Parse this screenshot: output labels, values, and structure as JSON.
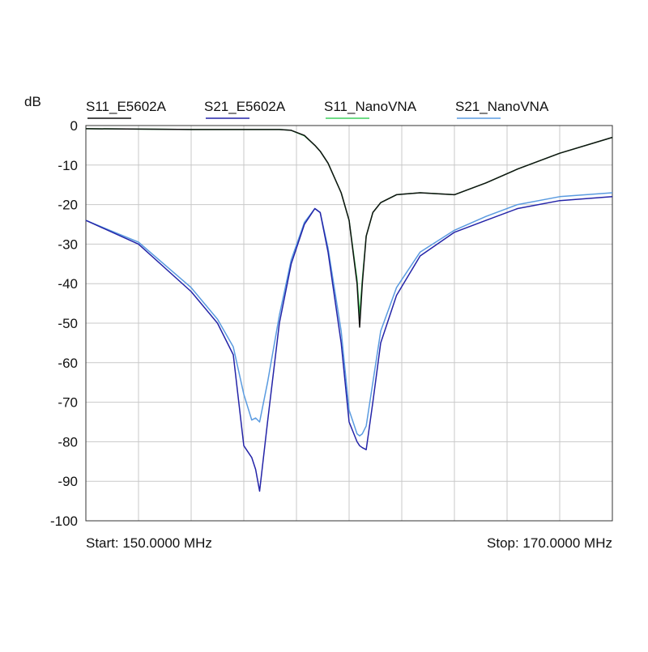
{
  "chart_data": {
    "type": "line",
    "y_axis_label": "dB",
    "start_label": "Start: 150.0000 MHz",
    "stop_label": "Stop: 170.0000 MHz",
    "x": [
      150,
      152,
      154,
      155,
      155.6,
      156,
      156.3,
      156.45,
      156.6,
      156.9,
      157.35,
      157.8,
      158.3,
      158.7,
      158.9,
      159.2,
      159.7,
      160,
      160.3,
      160.4,
      160.5,
      160.65,
      160.9,
      161.2,
      161.8,
      162.7,
      164,
      165.2,
      166.4,
      168,
      170
    ],
    "series": [
      {
        "name": "S11_E5602A",
        "color": "#111111",
        "values": [
          -0.8,
          -0.9,
          -1,
          -1,
          -1,
          -1,
          -1,
          -1,
          -1,
          -1,
          -1,
          -1.2,
          -2.5,
          -5,
          -6.5,
          -9.5,
          -17,
          -24,
          -40,
          -51,
          -40,
          -28,
          -22,
          -19.5,
          -17.5,
          -17,
          -17.5,
          -14.5,
          -11,
          -7,
          -3
        ]
      },
      {
        "name": "S21_E5602A",
        "color": "#2424a8",
        "values": [
          -24,
          -30,
          -42,
          -50,
          -58,
          -81,
          -84,
          -87,
          -92.5,
          -75,
          -50,
          -35,
          -25,
          -21,
          -22,
          -32,
          -55,
          -75,
          -80,
          -81,
          -81.5,
          -82,
          -70,
          -55,
          -43,
          -33,
          -27,
          -24,
          -21,
          -19,
          -18
        ]
      },
      {
        "name": "S11_NanoVNA",
        "color": "#3fcf5f",
        "values": [
          -0.8,
          -0.9,
          -1,
          -1,
          -1,
          -1,
          -1,
          -1,
          -1,
          -1,
          -1,
          -1.2,
          -2.6,
          -5,
          -6.5,
          -9.5,
          -17,
          -24,
          -39,
          -48,
          -39,
          -28,
          -22,
          -19.5,
          -17.5,
          -17,
          -17.5,
          -14.5,
          -11,
          -7,
          -3
        ]
      },
      {
        "name": "S21_NanoVNA",
        "color": "#5a9be0",
        "values": [
          -24,
          -29.5,
          -41,
          -49,
          -56,
          -68,
          -74.5,
          -74,
          -75,
          -65,
          -48,
          -34,
          -24.5,
          -21,
          -22,
          -31,
          -52,
          -72,
          -78,
          -78.5,
          -78,
          -76,
          -65,
          -52,
          -41,
          -32,
          -26.5,
          -23,
          -20,
          -18,
          -17
        ]
      }
    ],
    "xlim": [
      150,
      170
    ],
    "xticks": [
      150,
      152,
      154,
      156,
      158,
      160,
      162,
      164,
      166,
      168,
      170
    ],
    "ylim": [
      -100,
      0
    ],
    "yticks": [
      0,
      -10,
      -20,
      -30,
      -40,
      -50,
      -60,
      -70,
      -80,
      -90,
      -100
    ],
    "grid": true
  }
}
